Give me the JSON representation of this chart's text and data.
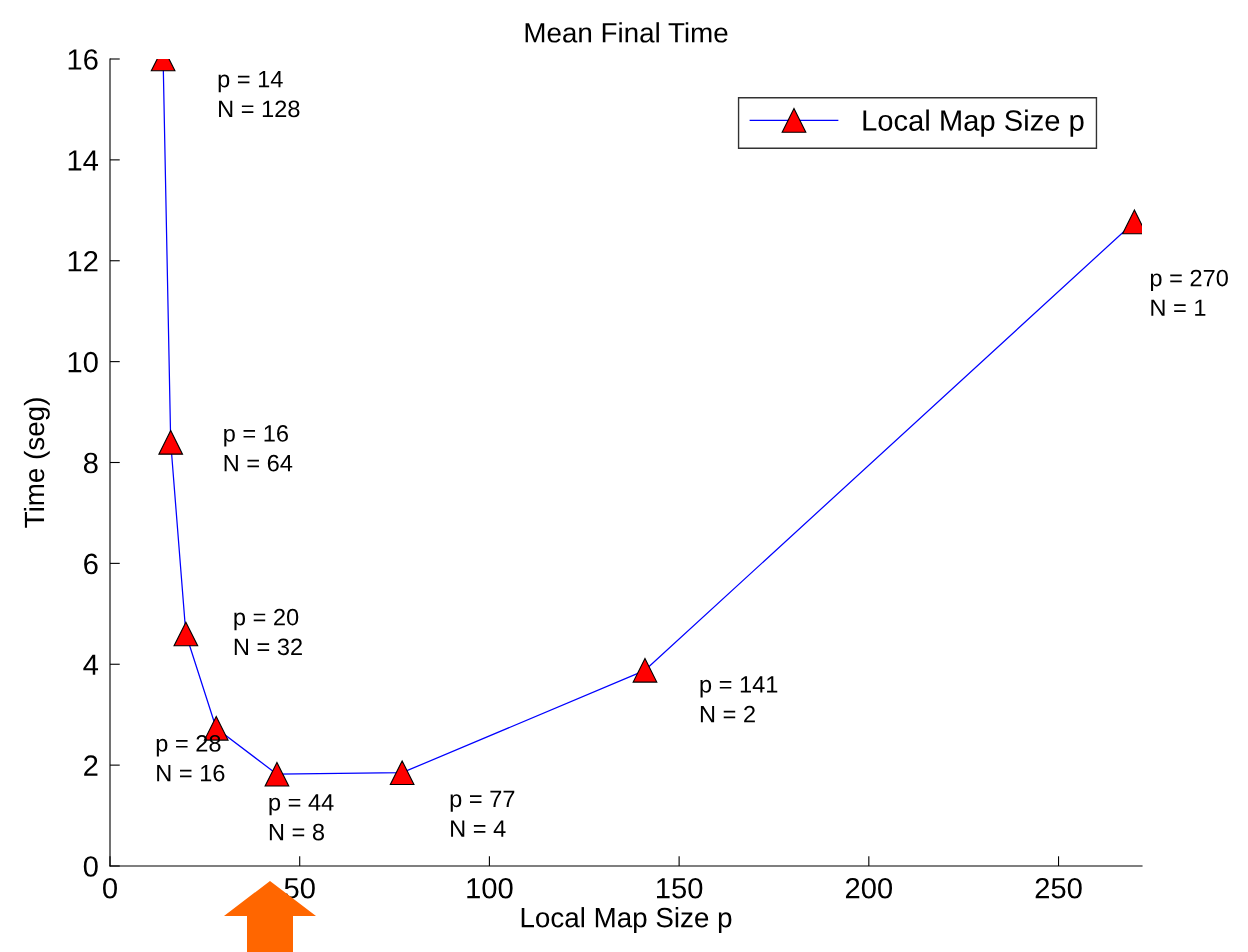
{
  "chart_data": {
    "type": "line",
    "title": "Mean Final Time",
    "xlabel": "Local Map Size p",
    "ylabel": "Time (seg)",
    "x": [
      14,
      16,
      20,
      28,
      44,
      77,
      141,
      270
    ],
    "series": [
      {
        "name": "Local Map Size p",
        "color": "#0000ff",
        "colors": [
          "#ff0000",
          "#ff0000",
          "#ff0000",
          "#ff0000",
          "#ff0000",
          "#ff0000",
          "#ff0000",
          "#ff0000"
        ],
        "values": [
          16.0,
          8.4,
          4.6,
          2.73,
          1.82,
          1.85,
          3.88,
          12.77
        ]
      }
    ],
    "marker": "triangle",
    "line_style": "solid",
    "xlim": [
      0,
      272
    ],
    "xticks": [
      0,
      50,
      100,
      150,
      200,
      250
    ],
    "ylim": [
      0,
      16
    ],
    "yticks": [
      0,
      2,
      4,
      6,
      8,
      10,
      12,
      14,
      16
    ],
    "grid": false,
    "legend": "top right",
    "annotations": [
      {
        "text": "p = 14\nN = 128",
        "x": 14,
        "y": 16.0
      },
      {
        "text": "p = 16\nN = 64",
        "x": 16,
        "y": 8.4
      },
      {
        "text": "p = 20\nN = 32",
        "x": 20,
        "y": 4.6
      },
      {
        "text": "p = 28\nN = 16",
        "x": 28,
        "y": 2.73
      },
      {
        "text": "p = 44\nN = 8",
        "x": 44,
        "y": 1.82
      },
      {
        "text": "p = 77\nN = 4",
        "x": 77,
        "y": 1.85
      },
      {
        "text": "p = 141\nN = 2",
        "x": 141,
        "y": 3.88
      },
      {
        "text": "p = 270\nN = 1",
        "x": 270,
        "y": 12.77
      }
    ]
  }
}
